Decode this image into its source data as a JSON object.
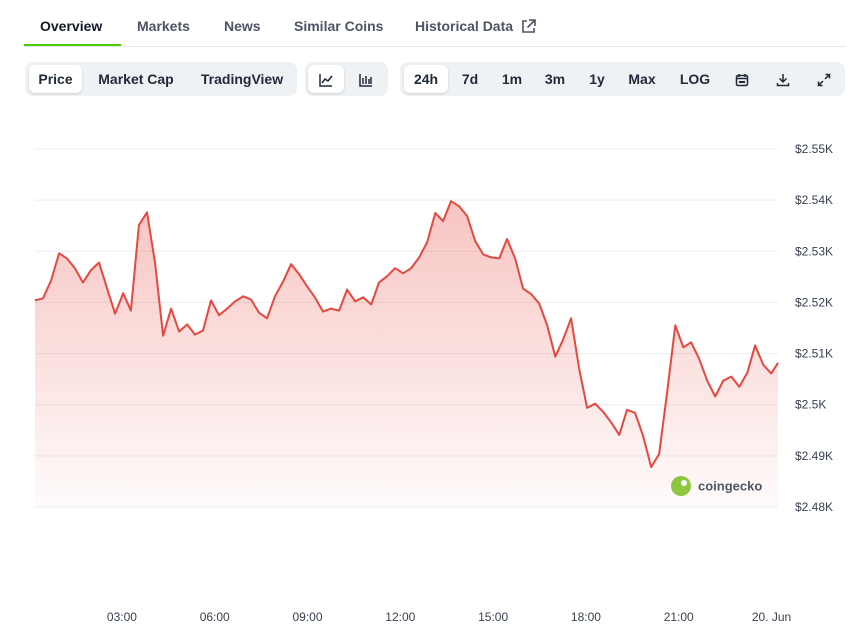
{
  "tabs": [
    "Overview",
    "Markets",
    "News",
    "Similar Coins",
    "Historical Data"
  ],
  "toolbar": {
    "chart_modes": [
      "Price",
      "Market Cap",
      "TradingView"
    ],
    "ranges": [
      "24h",
      "7d",
      "1m",
      "3m",
      "1y",
      "Max",
      "LOG"
    ]
  },
  "watermark": "coingecko",
  "chart_data": {
    "type": "line",
    "color": "#e5483f",
    "x": [
      0.19,
      0.45,
      0.71,
      0.97,
      1.22,
      1.48,
      1.74,
      2.0,
      2.26,
      2.52,
      2.78,
      3.04,
      3.29,
      3.55,
      3.81,
      4.07,
      4.33,
      4.59,
      4.85,
      5.11,
      5.36,
      5.62,
      5.88,
      6.14,
      6.4,
      6.66,
      6.92,
      7.17,
      7.43,
      7.69,
      7.95,
      8.21,
      8.47,
      8.73,
      8.99,
      9.24,
      9.5,
      9.76,
      10.02,
      10.28,
      10.54,
      10.8,
      11.06,
      11.31,
      11.57,
      11.83,
      12.09,
      12.35,
      12.61,
      12.87,
      13.13,
      13.38,
      13.64,
      13.9,
      14.16,
      14.42,
      14.68,
      14.94,
      15.2,
      15.45,
      15.71,
      15.97,
      16.23,
      16.49,
      16.75,
      17.01,
      17.26,
      17.52,
      17.78,
      18.04,
      18.3,
      18.56,
      18.82,
      19.08,
      19.33,
      19.59,
      19.85,
      20.11,
      20.37,
      20.63,
      20.89,
      21.15,
      21.4,
      21.66,
      21.92,
      22.18,
      22.44,
      22.7,
      22.96,
      23.22,
      23.47,
      23.73,
      23.99,
      24.21
    ],
    "values": [
      2520.4,
      2520.8,
      2524.3,
      2529.6,
      2528.6,
      2526.7,
      2523.9,
      2526.3,
      2527.8,
      2522.7,
      2517.8,
      2521.8,
      2518.4,
      2535.1,
      2537.6,
      2527.8,
      2513.5,
      2518.8,
      2514.3,
      2515.7,
      2513.7,
      2514.5,
      2520.4,
      2517.5,
      2518.8,
      2520.2,
      2521.2,
      2520.6,
      2518.0,
      2516.9,
      2521.2,
      2524.1,
      2527.5,
      2525.5,
      2523.1,
      2521.0,
      2518.2,
      2518.8,
      2518.4,
      2522.5,
      2520.2,
      2521.0,
      2519.6,
      2523.9,
      2525.1,
      2526.7,
      2525.7,
      2526.7,
      2528.8,
      2531.8,
      2537.5,
      2535.9,
      2539.8,
      2538.8,
      2536.9,
      2532.0,
      2529.4,
      2528.8,
      2528.6,
      2532.4,
      2528.6,
      2522.7,
      2521.6,
      2519.8,
      2515.5,
      2509.4,
      2512.7,
      2516.9,
      2507.1,
      2499.4,
      2500.2,
      2498.6,
      2496.5,
      2494.1,
      2499.0,
      2498.4,
      2493.9,
      2487.8,
      2490.4,
      2502.7,
      2515.5,
      2511.2,
      2512.2,
      2509.0,
      2504.7,
      2501.6,
      2504.7,
      2505.5,
      2503.5,
      2506.3,
      2511.6,
      2507.8,
      2506.1,
      2508.2
    ],
    "xlim": [
      0.19,
      24.21
    ],
    "xticks": [
      {
        "value": 3,
        "label": "03:00"
      },
      {
        "value": 6,
        "label": "06:00"
      },
      {
        "value": 9,
        "label": "09:00"
      },
      {
        "value": 12,
        "label": "12:00"
      },
      {
        "value": 15,
        "label": "15:00"
      },
      {
        "value": 18,
        "label": "18:00"
      },
      {
        "value": 21,
        "label": "21:00"
      },
      {
        "value": 24,
        "label": "20. Jun"
      }
    ],
    "ylim": [
      2480,
      2550
    ],
    "yticks": [
      {
        "value": 2480,
        "label": "$2.48K"
      },
      {
        "value": 2490,
        "label": "$2.49K"
      },
      {
        "value": 2500,
        "label": "$2.5K"
      },
      {
        "value": 2510,
        "label": "$2.51K"
      },
      {
        "value": 2520,
        "label": "$2.52K"
      },
      {
        "value": 2530,
        "label": "$2.53K"
      },
      {
        "value": 2540,
        "label": "$2.54K"
      },
      {
        "value": 2550,
        "label": "$2.55K"
      }
    ],
    "grid": true
  }
}
